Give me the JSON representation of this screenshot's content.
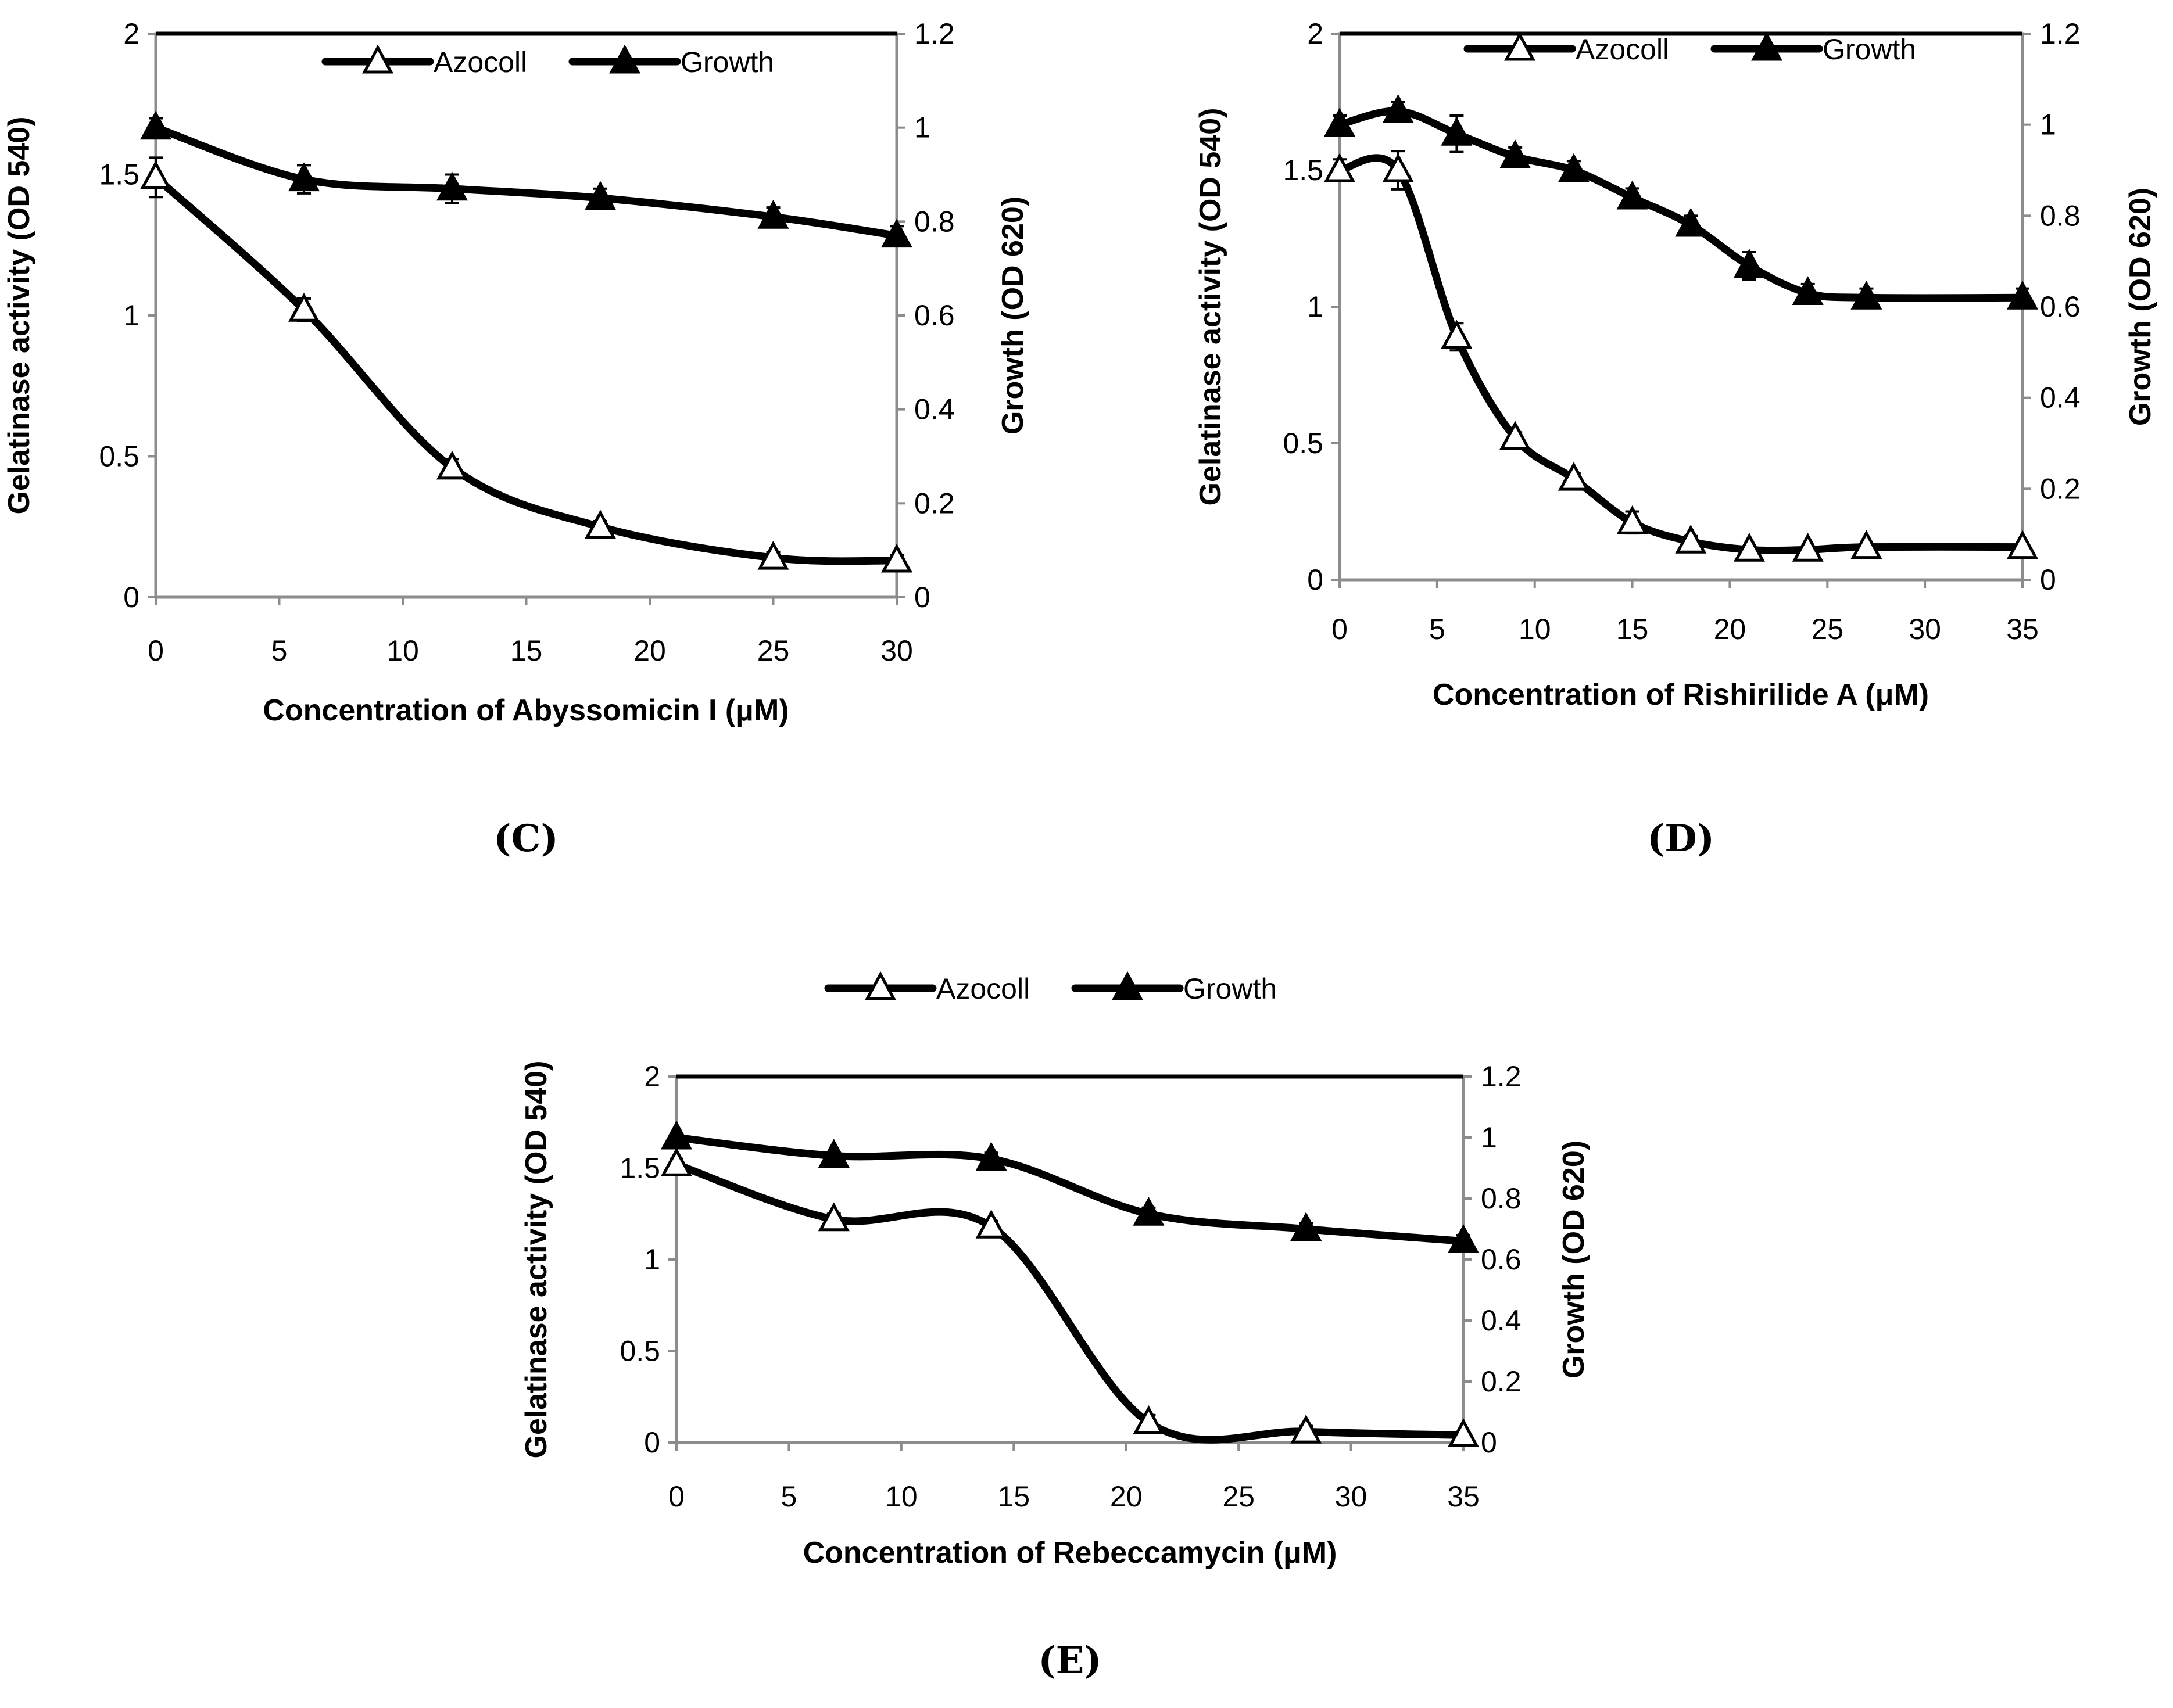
{
  "chart_data": [
    {
      "id": "C",
      "type": "line",
      "panel_label": "(C)",
      "xlabel": "Concentration of  Abyssomicin I  (μM)",
      "ylabel": "Gelatinase activity (OD 540)",
      "y2label": "Growth (OD 620)",
      "xlim": [
        0,
        30
      ],
      "ylim": [
        0,
        2
      ],
      "y2lim": [
        0,
        1.2
      ],
      "xticks": [
        "0",
        "5",
        "10",
        "15",
        "20",
        "25",
        "30"
      ],
      "yticks": [
        "0",
        "0.5",
        "1",
        "1.5",
        "2"
      ],
      "y2ticks": [
        "0",
        "0.2",
        "0.4",
        "0.6",
        "0.8",
        "1",
        "1.2"
      ],
      "legend": [
        "Azocoll",
        "Growth"
      ],
      "series": [
        {
          "name": "Azocoll",
          "axis": "left",
          "marker": "open-triangle",
          "x": [
            0,
            6,
            12,
            18,
            25,
            30
          ],
          "y": [
            1.49,
            1.02,
            0.46,
            0.25,
            0.14,
            0.13
          ],
          "err": [
            0.07,
            0.04,
            0.03,
            0.02,
            0.02,
            0.02
          ]
        },
        {
          "name": "Growth",
          "axis": "right",
          "marker": "filled-triangle",
          "x": [
            0,
            6,
            12,
            18,
            25,
            30
          ],
          "y": [
            1.0,
            0.89,
            0.87,
            0.85,
            0.81,
            0.77
          ],
          "err": [
            0.02,
            0.03,
            0.03,
            0.02,
            0.02,
            0.02
          ]
        }
      ]
    },
    {
      "id": "D",
      "type": "line",
      "panel_label": "(D)",
      "xlabel": "Concentration of  Rishirilide A  (μM)",
      "ylabel": "Gelatinase activity (OD 540)",
      "y2label": "Growth (OD 620)",
      "xlim": [
        0,
        35
      ],
      "ylim": [
        0,
        2
      ],
      "y2lim": [
        0,
        1.2
      ],
      "xticks": [
        "0",
        "5",
        "10",
        "15",
        "20",
        "25",
        "30",
        "35"
      ],
      "yticks": [
        "0",
        "0.5",
        "1",
        "1.5",
        "2"
      ],
      "y2ticks": [
        "0",
        "0.2",
        "0.4",
        "0.6",
        "0.8",
        "1",
        "1.2"
      ],
      "legend": [
        "Azocoll",
        "Growth"
      ],
      "series": [
        {
          "name": "Azocoll",
          "axis": "left",
          "marker": "open-triangle",
          "x": [
            0,
            3,
            6,
            9,
            12,
            15,
            18,
            21,
            24,
            27,
            35
          ],
          "y": [
            1.5,
            1.5,
            0.89,
            0.52,
            0.37,
            0.21,
            0.14,
            0.11,
            0.11,
            0.12,
            0.12
          ],
          "err": [
            0.04,
            0.07,
            0.05,
            0.02,
            0.02,
            0.04,
            0.02,
            0.01,
            0.01,
            0.01,
            0.01
          ]
        },
        {
          "name": "Growth",
          "axis": "right",
          "marker": "filled-triangle",
          "x": [
            0,
            3,
            6,
            9,
            12,
            15,
            18,
            21,
            24,
            27,
            35
          ],
          "y": [
            1.0,
            1.03,
            0.98,
            0.93,
            0.9,
            0.84,
            0.78,
            0.69,
            0.63,
            0.62,
            0.62
          ],
          "err": [
            0.02,
            0.02,
            0.04,
            0.02,
            0.02,
            0.02,
            0.02,
            0.03,
            0.02,
            0.02,
            0.02
          ]
        }
      ]
    },
    {
      "id": "E",
      "type": "line",
      "panel_label": "(E)",
      "xlabel": "Concentration of  Rebeccamycin  (μM)",
      "ylabel": "Gelatinase activity (OD 540)",
      "y2label": "Growth (OD 620)",
      "xlim": [
        0,
        35
      ],
      "ylim": [
        0,
        2
      ],
      "y2lim": [
        0,
        1.2
      ],
      "xticks": [
        "0",
        "5",
        "10",
        "15",
        "20",
        "25",
        "30",
        "35"
      ],
      "yticks": [
        "0",
        "0.5",
        "1",
        "1.5",
        "2"
      ],
      "y2ticks": [
        "0",
        "0.2",
        "0.4",
        "0.6",
        "0.8",
        "1",
        "1.2"
      ],
      "legend": [
        "Azocoll",
        "Growth"
      ],
      "series": [
        {
          "name": "Azocoll",
          "axis": "left",
          "marker": "open-triangle",
          "x": [
            0,
            7,
            14,
            21,
            28,
            35
          ],
          "y": [
            1.52,
            1.22,
            1.18,
            0.11,
            0.06,
            0.04
          ],
          "err": [
            0.03,
            0.03,
            0.03,
            0.04,
            0.03,
            0.01
          ]
        },
        {
          "name": "Growth",
          "axis": "right",
          "marker": "filled-triangle",
          "x": [
            0,
            7,
            14,
            21,
            28,
            35
          ],
          "y": [
            1.0,
            0.94,
            0.93,
            0.75,
            0.7,
            0.66
          ],
          "err": [
            0.01,
            0.01,
            0.02,
            0.02,
            0.02,
            0.02
          ]
        }
      ]
    }
  ]
}
